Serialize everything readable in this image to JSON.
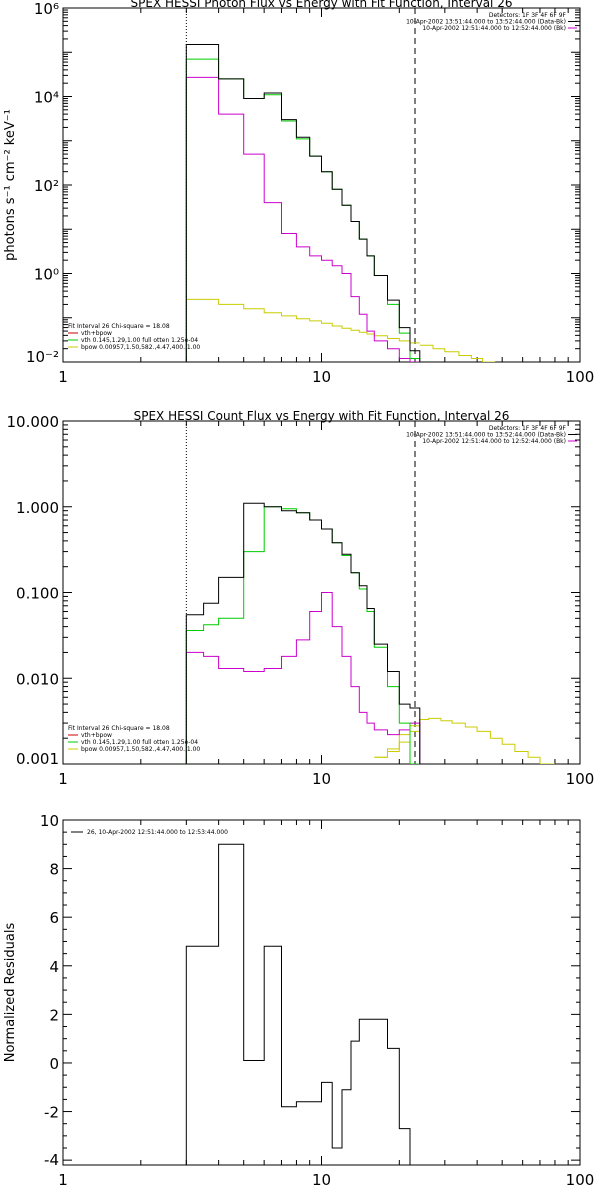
{
  "chart_data": [
    {
      "type": "line",
      "title": "SPEX HESSI Photon Flux vs Energy with Fit Function, Interval 26",
      "xlabel": "",
      "ylabel": "photons s⁻¹ cm⁻² keV⁻¹",
      "xscale": "log",
      "yscale": "log",
      "xlim": [
        1,
        100
      ],
      "ylim": [
        0.01,
        1000000
      ],
      "x_ticks": [
        {
          "value": 1,
          "label": "1"
        },
        {
          "value": 10,
          "label": "10"
        },
        {
          "value": 100,
          "label": "100"
        }
      ],
      "y_ticks": [
        {
          "value": 0.01,
          "label": "10⁻²"
        },
        {
          "value": 1,
          "label": "10⁰"
        },
        {
          "value": 100,
          "label": "10²"
        },
        {
          "value": 10000,
          "label": "10⁴"
        },
        {
          "value": 1000000,
          "label": "10⁶"
        }
      ],
      "vlines": [
        {
          "x": 3.0,
          "style": "dotted"
        },
        {
          "x": 23.0,
          "style": "dashed"
        }
      ],
      "header_lines": [
        "Detectors: 1F 3F 4F 6F 9F",
        "10-Apr-2002 13:51:44.000 to 13:52:44.000 (Data-Bk)",
        "10-Apr-2002 12:51:44.000 to 12:52:44.000 (Bk)"
      ],
      "fit_text": [
        "Fit Interval 26    Chi-square = 18.08",
        "vth+bpow",
        "vth 0.145,1.29,1.00  full otten 1.25e-04",
        "bpow 0.00957,1.50,582.,4.47,400.,1.00"
      ],
      "edges": [
        3.0,
        4.0,
        5.0,
        6.0,
        7.0,
        8.0,
        9.0,
        10.0,
        11.0,
        12.0,
        13.0,
        14.0,
        15.0,
        16.0,
        18.0,
        20.0,
        22.0,
        24.0
      ],
      "series": [
        {
          "name": "Data-Bk",
          "color": "#000000",
          "values": [
            150000,
            25000,
            9000,
            12000,
            3000,
            1200,
            450,
            200,
            80,
            35,
            15,
            6,
            2.5,
            0.9,
            0.25,
            0.06,
            0.018
          ]
        },
        {
          "name": "Bk",
          "color": "#cc00cc",
          "values": [
            27000,
            4000,
            500,
            40,
            8,
            4,
            2.5,
            2.0,
            1.5,
            1.0,
            0.3,
            0.12,
            0.05,
            0.03,
            0.02,
            0.012,
            0.01
          ]
        },
        {
          "name": "vth+bpow",
          "color": "#00cc00",
          "values": [
            70000,
            25000,
            9000,
            11000,
            2800,
            1100,
            450,
            200,
            80,
            35,
            15,
            6,
            2.5,
            0.9,
            0.2,
            0.045,
            0.012
          ]
        },
        {
          "name": "bpow",
          "color": "#cccc00",
          "values": [
            0.26,
            0.2,
            0.16,
            0.13,
            0.11,
            0.095,
            0.085,
            0.075,
            0.065,
            0.058,
            0.052,
            0.047,
            0.043,
            0.039,
            0.034,
            0.03,
            0.027
          ]
        }
      ],
      "bpow_tail": {
        "edges": [
          24,
          27,
          30,
          34,
          38,
          42,
          47
        ],
        "values": [
          0.024,
          0.02,
          0.017,
          0.014,
          0.012,
          0.01
        ]
      }
    },
    {
      "type": "line",
      "title": "SPEX HESSI Count Flux vs Energy with Fit Function, Interval 26",
      "xlabel": "",
      "ylabel": "",
      "xscale": "log",
      "yscale": "log",
      "xlim": [
        1,
        100
      ],
      "ylim": [
        0.001,
        10
      ],
      "x_ticks": [
        {
          "value": 1,
          "label": "1"
        },
        {
          "value": 10,
          "label": "10"
        },
        {
          "value": 100,
          "label": "100"
        }
      ],
      "y_ticks": [
        {
          "value": 0.001,
          "label": "0.001"
        },
        {
          "value": 0.01,
          "label": "0.010"
        },
        {
          "value": 0.1,
          "label": "0.100"
        },
        {
          "value": 1,
          "label": "1.000"
        },
        {
          "value": 10,
          "label": "10.000"
        }
      ],
      "vlines": [
        {
          "x": 3.0,
          "style": "dotted"
        },
        {
          "x": 23.0,
          "style": "dashed"
        }
      ],
      "header_lines": [
        "Detectors: 1F 3F 4F 6F 9F",
        "10-Apr-2002 13:51:44.000 to 13:52:44.000 (Data-Bk)",
        "10-Apr-2002 12:51:44.000 to 12:52:44.000 (Bk)"
      ],
      "fit_text": [
        "Fit Interval 26    Chi-square = 18.08",
        "vth+bpow",
        "vth 0.145,1.29,1.00  full otten 1.25e-04",
        "bpow 0.00957,1.50,582.,4.47,400.,1.00"
      ],
      "edges": [
        3.0,
        3.5,
        4.0,
        5.0,
        6.0,
        7.0,
        8.0,
        9.0,
        10.0,
        11.0,
        12.0,
        13.0,
        14.0,
        15.0,
        16.0,
        18.0,
        20.0,
        22.0,
        24.0
      ],
      "series": [
        {
          "name": "Data-Bk",
          "color": "#000000",
          "values": [
            0.055,
            0.075,
            0.15,
            1.1,
            1.0,
            0.9,
            0.85,
            0.7,
            0.55,
            0.38,
            0.28,
            0.17,
            0.12,
            0.065,
            0.025,
            0.012,
            0.005,
            0.0045
          ]
        },
        {
          "name": "Bk",
          "color": "#cc00cc",
          "values": [
            0.02,
            0.018,
            0.013,
            0.012,
            0.013,
            0.018,
            0.028,
            0.06,
            0.1,
            0.04,
            0.018,
            0.008,
            0.004,
            0.003,
            0.0025,
            0.0022,
            0.0025,
            0.003
          ]
        },
        {
          "name": "vth+bpow",
          "color": "#00cc00",
          "values": [
            0.036,
            0.042,
            0.05,
            0.3,
            1.0,
            0.95,
            0.85,
            0.7,
            0.55,
            0.38,
            0.27,
            0.17,
            0.11,
            0.06,
            0.023,
            0.008,
            0.003,
            0.001
          ]
        },
        {
          "name": "bpow",
          "color": "#cccc00",
          "values": [
            null,
            null,
            null,
            null,
            null,
            null,
            null,
            null,
            null,
            null,
            null,
            null,
            null,
            null,
            0.0012,
            0.0014,
            0.0018,
            0.0024
          ]
        }
      ],
      "bpow_tail": {
        "edges": [
          16,
          18,
          20,
          22,
          24,
          26,
          29,
          32,
          36,
          40,
          45,
          50,
          56,
          63,
          70,
          80
        ],
        "values": [
          0.0012,
          0.0015,
          0.0022,
          0.0028,
          0.0033,
          0.0034,
          0.0032,
          0.003,
          0.0027,
          0.0024,
          0.002,
          0.0017,
          0.0014,
          0.0012,
          0.001
        ]
      }
    },
    {
      "type": "line",
      "title": "",
      "xlabel": "",
      "ylabel": "Normalized Residuals",
      "xscale": "log",
      "yscale": "linear",
      "xlim": [
        1,
        100
      ],
      "ylim": [
        -4.2,
        10
      ],
      "x_ticks": [
        {
          "value": 1,
          "label": "1"
        },
        {
          "value": 10,
          "label": "10"
        },
        {
          "value": 100,
          "label": "100"
        }
      ],
      "y_ticks": [
        {
          "value": -4,
          "label": "-4"
        },
        {
          "value": -2,
          "label": "-2"
        },
        {
          "value": 0,
          "label": "0"
        },
        {
          "value": 2,
          "label": "2"
        },
        {
          "value": 4,
          "label": "4"
        },
        {
          "value": 6,
          "label": "6"
        },
        {
          "value": 8,
          "label": "8"
        },
        {
          "value": 10,
          "label": "10"
        }
      ],
      "legend": [
        {
          "name": "26, 10-Apr-2002 12:51:44.000 to 12:53:44.000",
          "color": "#000000"
        }
      ],
      "edges": [
        3.0,
        4.0,
        5.0,
        6.0,
        7.0,
        8.0,
        9.0,
        10.0,
        11.0,
        12.0,
        13.0,
        14.0,
        15.0,
        16.0,
        18.0,
        20.0,
        22.0,
        24.0
      ],
      "series": [
        {
          "name": "26, 10-Apr-2002 12:51:44.000 to 12:53:44.000",
          "color": "#000000",
          "values": [
            4.8,
            9.0,
            0.1,
            4.8,
            -1.8,
            -1.6,
            -1.6,
            -0.8,
            -3.5,
            -1.1,
            0.9,
            1.8,
            1.8,
            1.8,
            0.6,
            -2.7,
            -4.2
          ]
        }
      ]
    }
  ]
}
